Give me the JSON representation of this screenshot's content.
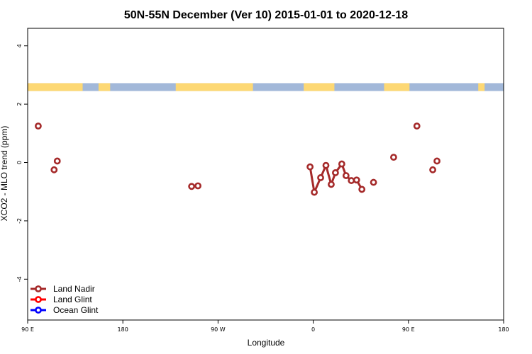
{
  "chart_data": {
    "type": "line",
    "title": "50N-55N December (Ver 10)   2015-01-01 to 2020-12-18",
    "xlabel": "Longitude",
    "ylabel": "XCO2 - MLO trend (ppm)",
    "xlim": [
      0,
      450
    ],
    "ylim": [
      -5.4,
      4.6
    ],
    "x_ticks": [
      {
        "value": 0,
        "label": "90 E"
      },
      {
        "value": 90,
        "label": "180"
      },
      {
        "value": 180,
        "label": "90 W"
      },
      {
        "value": 270,
        "label": "0"
      },
      {
        "value": 360,
        "label": "90 E"
      },
      {
        "value": 450,
        "label": "180"
      }
    ],
    "y_ticks": [
      {
        "value": -4,
        "label": "-4"
      },
      {
        "value": -2,
        "label": "-2"
      },
      {
        "value": 0,
        "label": "0"
      },
      {
        "value": 2,
        "label": "2"
      },
      {
        "value": 4,
        "label": "4"
      }
    ],
    "land_ocean_band": {
      "y_range": [
        2.45,
        2.72
      ],
      "land_color": "#FDD874",
      "ocean_color": "#A2B8D9",
      "land_segments": [
        [
          0,
          52
        ],
        [
          67,
          78
        ],
        [
          140,
          213
        ],
        [
          261,
          290
        ],
        [
          337,
          361
        ],
        [
          426,
          432
        ]
      ]
    },
    "series": [
      {
        "name": "Land Nadir",
        "color": "#A52A2A",
        "points": [
          [
            10,
            1.25
          ],
          [
            25,
            -0.25
          ],
          [
            28,
            0.05
          ],
          [
            155,
            -0.82
          ],
          [
            161,
            -0.8
          ],
          [
            267,
            -0.15
          ],
          [
            271,
            -1.02
          ],
          [
            277,
            -0.52
          ],
          [
            282,
            -0.1
          ],
          [
            287,
            -0.75
          ],
          [
            291,
            -0.35
          ],
          [
            297,
            -0.05
          ],
          [
            301,
            -0.45
          ],
          [
            306,
            -0.62
          ],
          [
            311,
            -0.6
          ],
          [
            316,
            -0.92
          ],
          [
            327,
            -0.68
          ],
          [
            346,
            0.18
          ],
          [
            368,
            1.25
          ],
          [
            383,
            -0.25
          ],
          [
            387,
            0.05
          ]
        ],
        "line_segments": [
          [
            [
              267,
              -0.15
            ],
            [
              271,
              -1.02
            ],
            [
              277,
              -0.52
            ],
            [
              282,
              -0.1
            ],
            [
              287,
              -0.75
            ],
            [
              291,
              -0.35
            ],
            [
              297,
              -0.05
            ],
            [
              301,
              -0.45
            ],
            [
              306,
              -0.62
            ],
            [
              311,
              -0.6
            ],
            [
              316,
              -0.92
            ]
          ]
        ]
      },
      {
        "name": "Land Glint",
        "color": "#FF0000",
        "points": []
      },
      {
        "name": "Ocean Glint",
        "color": "#0000FF",
        "points": []
      }
    ],
    "legend_position": "bottom-left"
  }
}
